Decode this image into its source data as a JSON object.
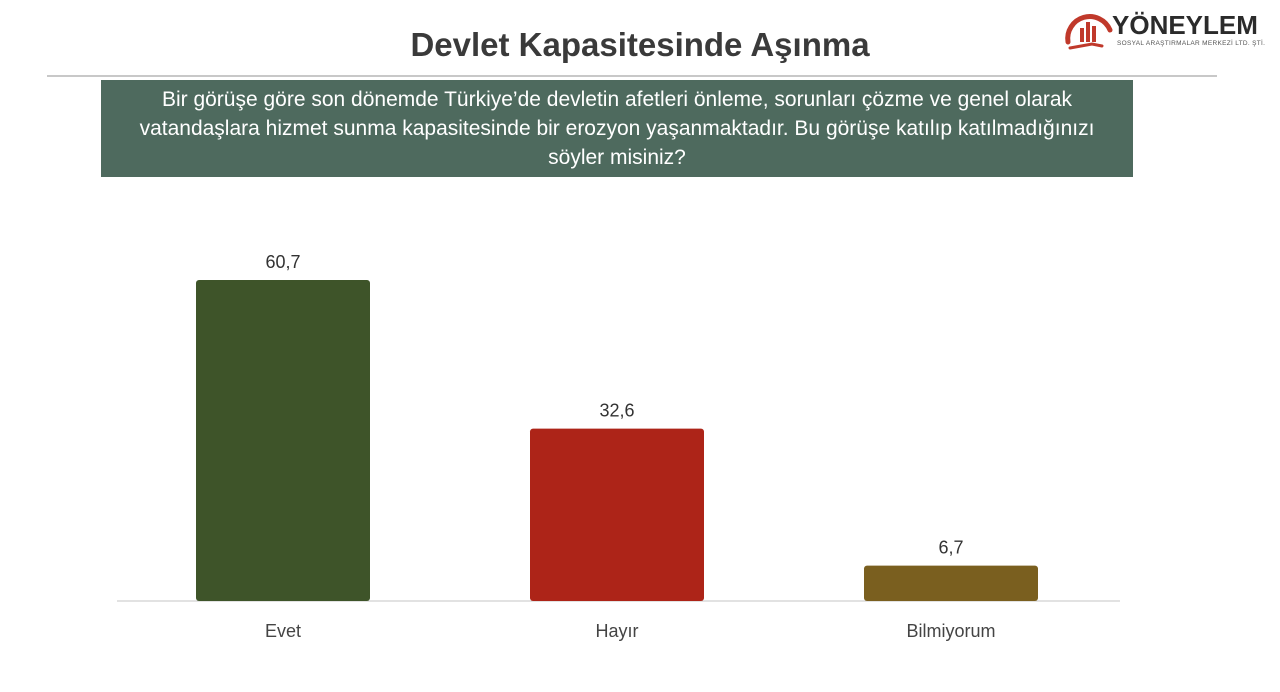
{
  "header": {
    "title": "Devlet Kapasitesinde Aşınma",
    "logo_name": "YÖNEYLEM",
    "logo_sub": "SOSYAL ARAŞTIRMALAR MERKEZİ LTD. ŞTİ."
  },
  "question": "Bir görüşe göre son dönemde Türkiye’de devletin afetleri önleme, sorunları çözme ve genel olarak vatandaşlara hizmet sunma kapasitesinde bir erozyon yaşanmaktadır. Bu görüşe katılıp katılmadığınızı söyler misiniz?",
  "colors": {
    "brand_red": "#c0392b",
    "question_bg": "#4e6a5e",
    "bars": [
      "#3e5429",
      "#ad2418",
      "#7a5f1f"
    ]
  },
  "chart_data": {
    "type": "bar",
    "categories": [
      "Evet",
      "Hayır",
      "Bilmiyorum"
    ],
    "values": [
      60.7,
      32.6,
      6.7
    ],
    "value_labels": [
      "60,7",
      "32,6",
      "6,7"
    ],
    "ylim": [
      0,
      70
    ],
    "grid": false,
    "legend": false
  }
}
